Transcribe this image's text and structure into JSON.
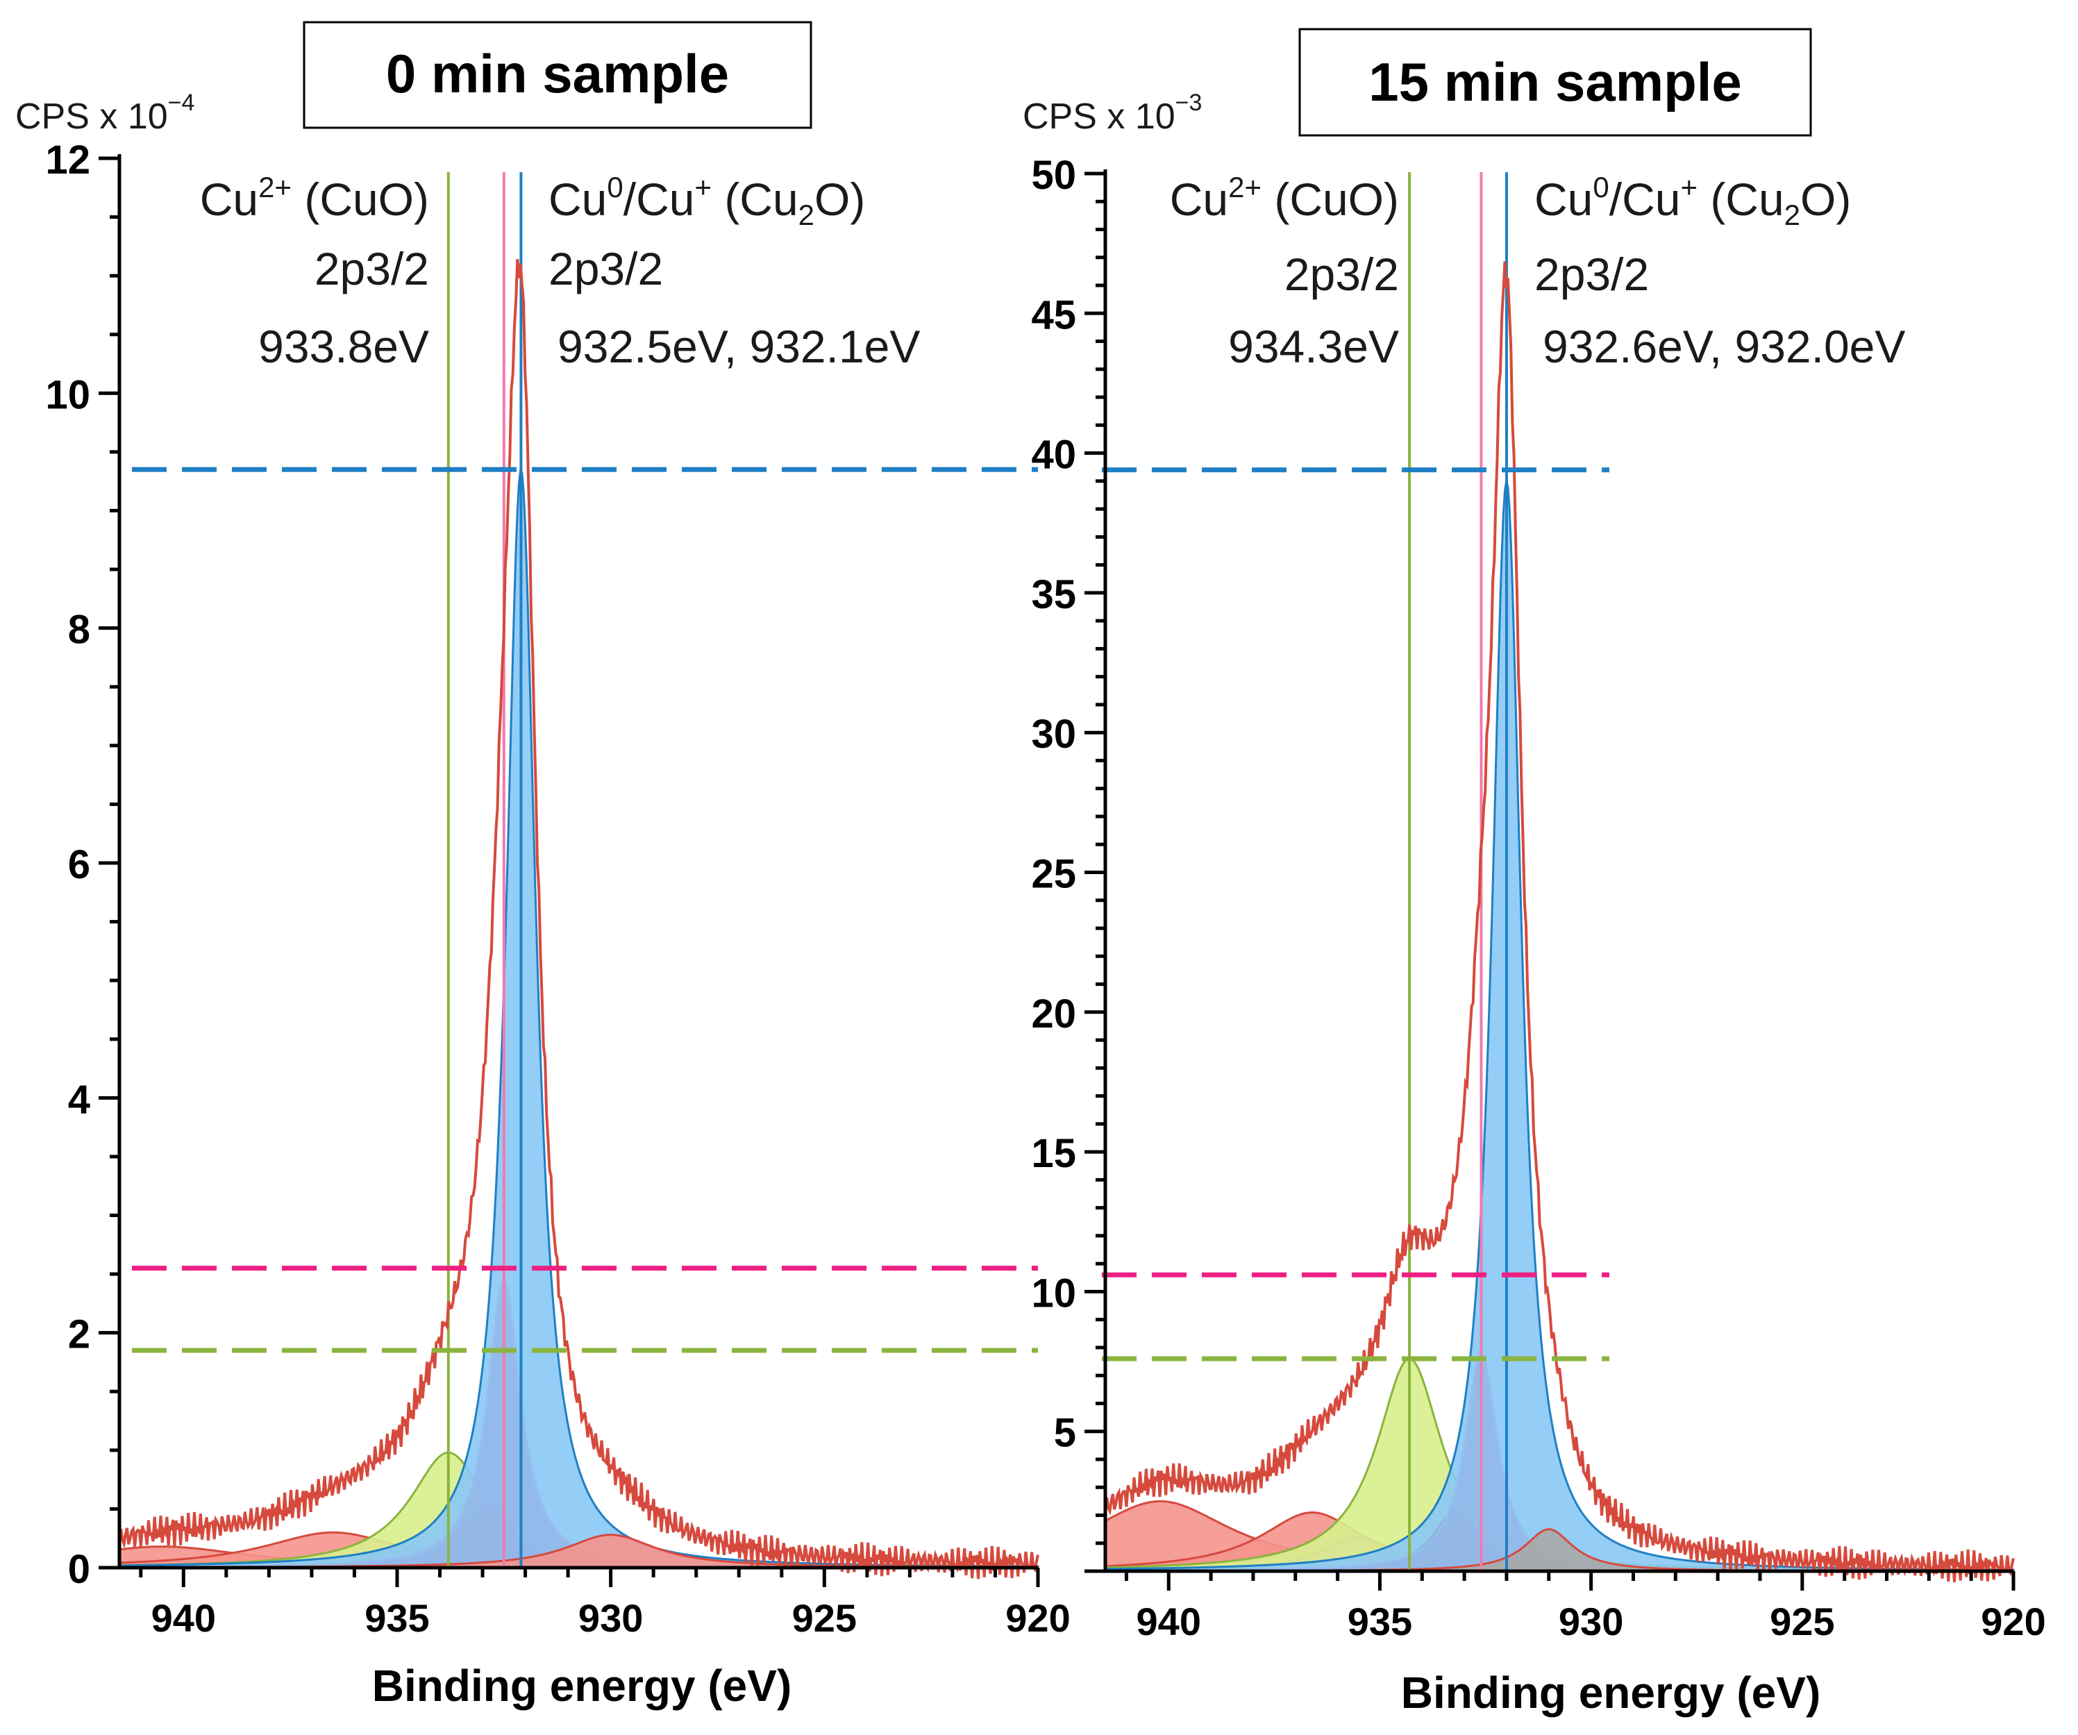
{
  "chart_data": [
    {
      "type": "line",
      "title": "0 min sample",
      "ylabel": "CPS x 10",
      "ylabel_exp": "−4",
      "xlabel": "Binding energy (eV)",
      "xlim": [
        941.5,
        920
      ],
      "ylim": [
        0,
        12
      ],
      "x_ticks": [
        "940",
        "935",
        "930",
        "925",
        "920"
      ],
      "y_ticks": [
        "0",
        "2",
        "4",
        "6",
        "8",
        "10",
        "12"
      ],
      "annotations": {
        "left_species": "Cu",
        "left_species_sup": "2+",
        "left_species_rest": " (CuO)",
        "left_orbital": "2p3/2",
        "left_energy": "933.8eV",
        "right_species_a": "Cu",
        "right_species_sup_a": "0",
        "right_species_b": "/Cu",
        "right_species_sup_b": "+",
        "right_species_c": " (Cu",
        "right_species_sub": "2",
        "right_species_d": "O)",
        "right_orbital": "2p3/2",
        "right_energy": "932.5eV, 932.1eV"
      },
      "reference_lines": [
        {
          "name": "CuO",
          "x": 933.8,
          "color": "#8ab43e"
        },
        {
          "name": "Cu2O",
          "x": 932.5,
          "color": "#f27ab0"
        },
        {
          "name": "Cu0",
          "x": 932.1,
          "color": "#1f7fc4"
        }
      ],
      "threshold_lines": [
        {
          "name": "Cu0 height",
          "y": 9.35,
          "color": "#1f7fc4"
        },
        {
          "name": "Cu2O height",
          "y": 2.55,
          "color": "#ee1f83"
        },
        {
          "name": "CuO height",
          "y": 1.85,
          "color": "#8ab43e"
        }
      ],
      "peaks": [
        {
          "name": "satellite-1",
          "center": 940.5,
          "height": 0.18,
          "fwhm": 5.0,
          "fill": "#f5938d",
          "stroke": "#d64a3d"
        },
        {
          "name": "satellite-2",
          "center": 936.5,
          "height": 0.3,
          "fwhm": 4.0,
          "fill": "#f5938d",
          "stroke": "#d64a3d"
        },
        {
          "name": "satellite-3",
          "center": 935.3,
          "height": 0.12,
          "fwhm": 2.5,
          "fill": "#e98fe6",
          "stroke": "#c05ec0"
        },
        {
          "name": "CuO",
          "center": 933.8,
          "height": 0.98,
          "fwhm": 2.2,
          "fill": "#d8f08c",
          "stroke": "#8ab43e"
        },
        {
          "name": "CuO-shoulder",
          "center": 932.9,
          "height": 0.55,
          "fwhm": 1.4,
          "fill": "#ff1d1d",
          "stroke": "#c90000"
        },
        {
          "name": "Cu2O",
          "center": 932.5,
          "height": 2.45,
          "fwhm": 0.95,
          "fill": "#ef2a7a",
          "stroke": "#f27ab0"
        },
        {
          "name": "Cu0",
          "center": 932.1,
          "height": 9.35,
          "fwhm": 0.85,
          "fill": "#88c8f5",
          "stroke": "#1f7fc4"
        },
        {
          "name": "low-BE",
          "center": 930.0,
          "height": 0.28,
          "fwhm": 2.6,
          "fill": "#f5938d",
          "stroke": "#d64a3d"
        }
      ],
      "envelope_peak": 11.1
    },
    {
      "type": "line",
      "title": "15 min sample",
      "ylabel": "CPS x 10",
      "ylabel_exp": "−3",
      "xlabel": "Binding energy (eV)",
      "xlim": [
        941.5,
        920
      ],
      "ylim": [
        0,
        50
      ],
      "x_ticks": [
        "940",
        "935",
        "930",
        "925",
        "920"
      ],
      "y_ticks": [
        "5",
        "10",
        "15",
        "20",
        "25",
        "30",
        "35",
        "40",
        "45",
        "50"
      ],
      "annotations": {
        "left_species": "Cu",
        "left_species_sup": "2+",
        "left_species_rest": " (CuO)",
        "left_orbital": "2p3/2",
        "left_energy": "934.3eV",
        "right_species_a": "Cu",
        "right_species_sup_a": "0",
        "right_species_b": "/Cu",
        "right_species_sup_b": "+",
        "right_species_c": " (Cu",
        "right_species_sub": "2",
        "right_species_d": "O)",
        "right_orbital": "2p3/2",
        "right_energy": "932.6eV, 932.0eV"
      },
      "reference_lines": [
        {
          "name": "CuO",
          "x": 934.3,
          "color": "#8ab43e"
        },
        {
          "name": "Cu2O",
          "x": 932.6,
          "color": "#f27ab0"
        },
        {
          "name": "Cu0",
          "x": 932.0,
          "color": "#1f7fc4"
        }
      ],
      "threshold_lines": [
        {
          "name": "Cu0 height",
          "y": 39.4,
          "color": "#1f7fc4"
        },
        {
          "name": "Cu2O height",
          "y": 10.6,
          "color": "#ee1f83"
        },
        {
          "name": "CuO height",
          "y": 7.6,
          "color": "#8ab43e"
        }
      ],
      "peaks": [
        {
          "name": "satellite-1",
          "center": 940.2,
          "height": 2.5,
          "fwhm": 4.2,
          "fill": "#f5938d",
          "stroke": "#d64a3d"
        },
        {
          "name": "satellite-2",
          "center": 936.6,
          "height": 2.1,
          "fwhm": 3.0,
          "fill": "#f5938d",
          "stroke": "#d64a3d"
        },
        {
          "name": "satellite-3",
          "center": 935.6,
          "height": 1.2,
          "fwhm": 2.0,
          "fill": "#e98fe6",
          "stroke": "#c05ec0"
        },
        {
          "name": "CuO",
          "center": 934.3,
          "height": 7.6,
          "fwhm": 1.9,
          "fill": "#d8f08c",
          "stroke": "#8ab43e"
        },
        {
          "name": "CuO-shoulder",
          "center": 933.2,
          "height": 2.2,
          "fwhm": 1.3,
          "fill": "#ff1d1d",
          "stroke": "#c90000"
        },
        {
          "name": "Cu2O",
          "center": 932.6,
          "height": 7.8,
          "fwhm": 0.95,
          "fill": "#ef2a7a",
          "stroke": "#f27ab0"
        },
        {
          "name": "Cu0",
          "center": 932.0,
          "height": 39.0,
          "fwhm": 0.85,
          "fill": "#88c8f5",
          "stroke": "#1f7fc4"
        },
        {
          "name": "low-BE",
          "center": 931.0,
          "height": 1.5,
          "fwhm": 1.4,
          "fill": "#a8a8a8",
          "stroke": "#d64a3d"
        }
      ],
      "envelope_peak": 46.5
    }
  ],
  "colors": {
    "envelope": "#d64a3d",
    "axis": "#000000"
  }
}
